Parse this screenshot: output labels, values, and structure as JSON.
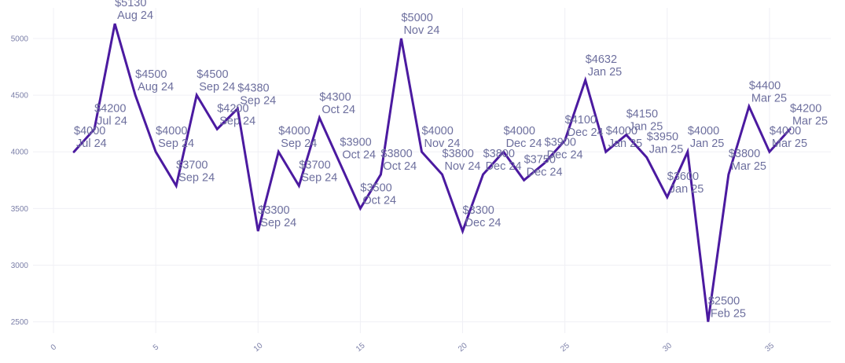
{
  "chart_data": {
    "type": "line",
    "title": "",
    "xlabel": "",
    "ylabel": "",
    "xlim": [
      -1,
      38
    ],
    "ylim": [
      2400,
      5270
    ],
    "x_ticks": [
      0,
      5,
      10,
      15,
      20,
      25,
      30,
      35
    ],
    "y_ticks": [
      2500,
      3000,
      3500,
      4000,
      4500,
      5000
    ],
    "grid": true,
    "legend": "none",
    "line_color": "#4b1aa0",
    "series": [
      {
        "name": "",
        "x": [
          1,
          2,
          3,
          4,
          5,
          6,
          7,
          8,
          9,
          10,
          11,
          12,
          13,
          14,
          15,
          16,
          17,
          18,
          19,
          20,
          21,
          22,
          23,
          24,
          25,
          26,
          27,
          28,
          29,
          30,
          31,
          32,
          33,
          34,
          35,
          36
        ],
        "values": [
          4000,
          4200,
          5130,
          4500,
          4000,
          3700,
          4500,
          4200,
          4380,
          3300,
          4000,
          3700,
          4300,
          3900,
          3500,
          3800,
          5000,
          4000,
          3800,
          3300,
          3800,
          4000,
          3750,
          3900,
          4100,
          4632,
          4000,
          4150,
          3950,
          3600,
          4000,
          2500,
          3800,
          4400,
          4000,
          4200
        ],
        "labels": [
          "$4000",
          "$4200",
          "$5130",
          "$4500",
          "$4000",
          "$3700",
          "$4500",
          "$4200",
          "$4380",
          "$3300",
          "$4000",
          "$3700",
          "$4300",
          "$3900",
          "$3500",
          "$3800",
          "$5000",
          "$4000",
          "$3800",
          "$3300",
          "$3800",
          "$4000",
          "$3750",
          "$3900",
          "$4100",
          "$4632",
          "$4000",
          "$4150",
          "$3950",
          "$3600",
          "$4000",
          "$2500",
          "$3800",
          "$4400",
          "$4000",
          "$4200"
        ],
        "months": [
          "Jul 24",
          "Jul 24",
          "Aug 24",
          "Aug 24",
          "Sep 24",
          "Sep 24",
          "Sep 24",
          "Sep 24",
          "Sep 24",
          "Sep 24",
          "Sep 24",
          "Sep 24",
          "Oct 24",
          "Oct 24",
          "Oct 24",
          "Oct 24",
          "Nov 24",
          "Nov 24",
          "Nov 24",
          "Dec 24",
          "Dec 24",
          "Dec 24",
          "Dec 24",
          "Dec 24",
          "Dec 24",
          "Jan 25",
          "Jan 25",
          "Jan 25",
          "Jan 25",
          "Jan 25",
          "Jan 25",
          "Feb 25",
          "Mar 25",
          "Mar 25",
          "Mar 25",
          "Mar 25"
        ]
      }
    ]
  }
}
